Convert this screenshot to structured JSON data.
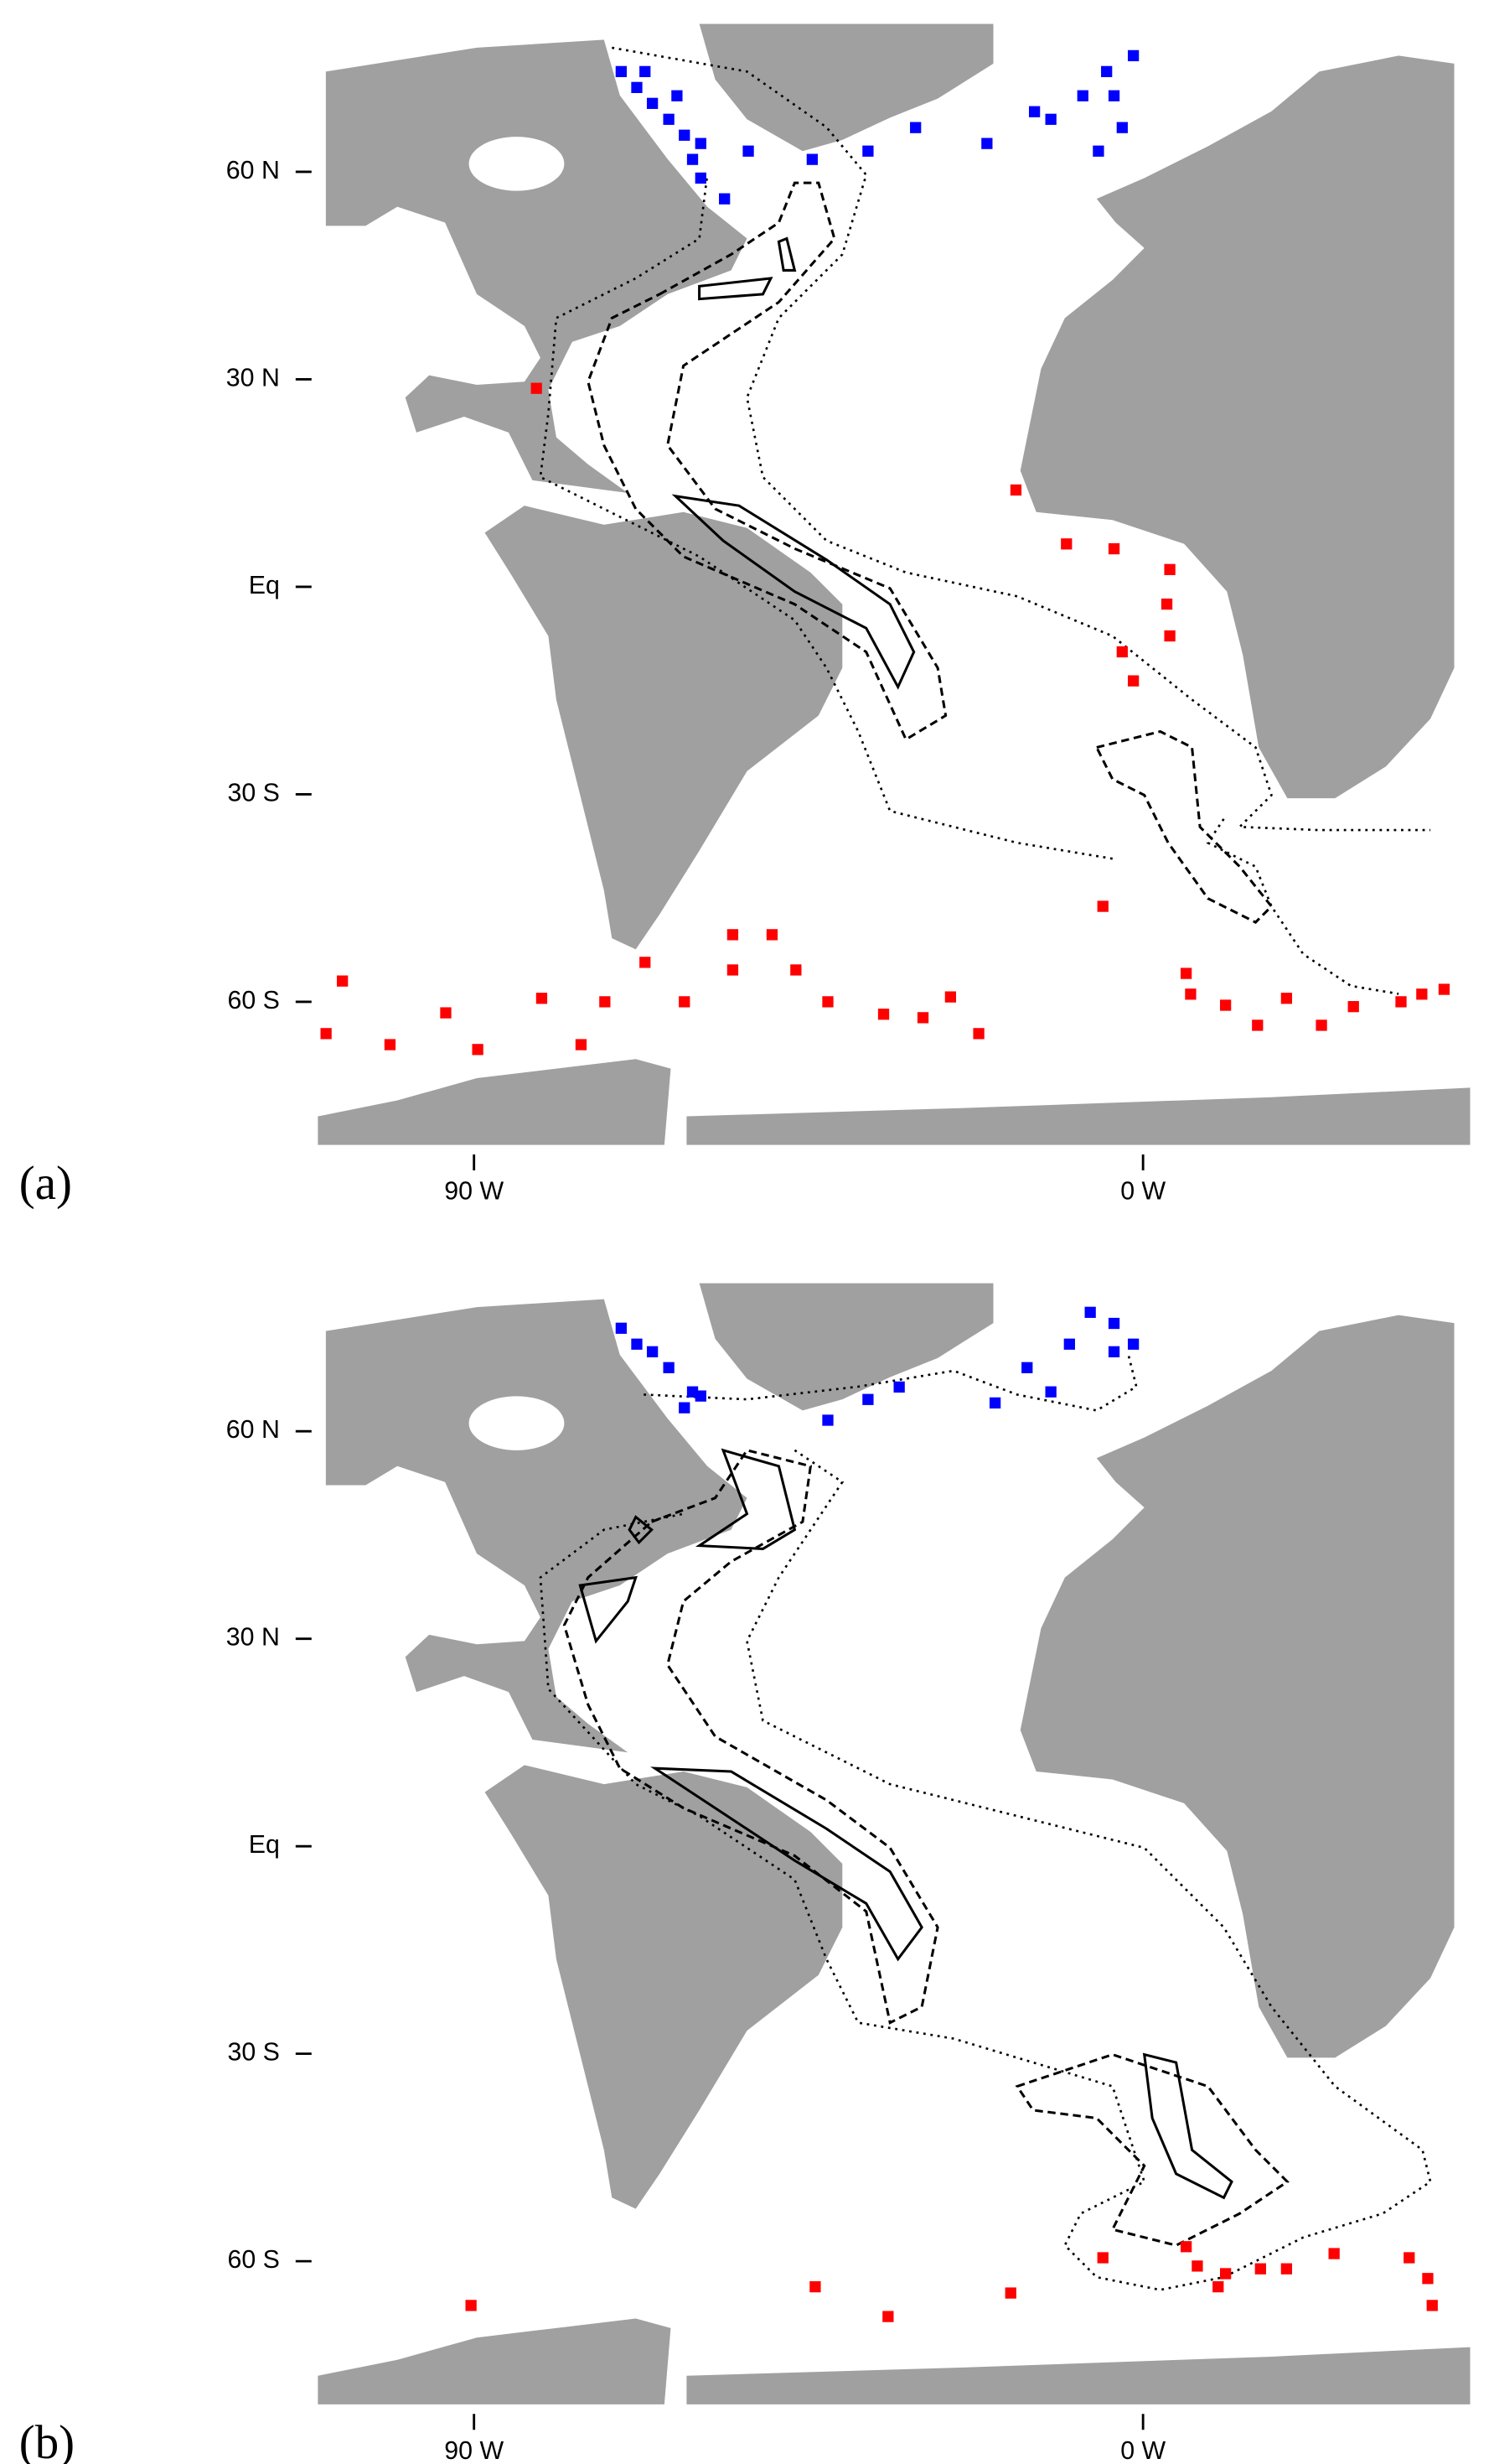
{
  "panels": [
    {
      "label": "(a)",
      "xlim": [
        -111,
        44
      ],
      "ylim": [
        -80.7,
        81.4
      ],
      "xticks": [
        {
          "value": -90,
          "label": "90 W"
        },
        {
          "value": 0,
          "label": "0 W"
        }
      ],
      "yticks": [
        {
          "value": 60,
          "label": "60 N"
        },
        {
          "value": 30,
          "label": "30 N"
        },
        {
          "value": 0,
          "label": "Eq"
        },
        {
          "value": -30,
          "label": "30 S"
        },
        {
          "value": -60,
          "label": "60 S"
        }
      ],
      "series": [
        {
          "color": "#0000ff",
          "lon": [
            -70.2,
            -68.1,
            -66.0,
            -63.8,
            -61.7,
            -60.6,
            -59.5,
            -56.3,
            -67.0,
            -62.7,
            -59.5,
            -53.1,
            -44.5,
            -37.0,
            -30.6,
            -21.0,
            -12.4,
            -8.1,
            -3.9,
            -1.3,
            -4.9,
            -2.8,
            -6.0,
            -14.6
          ],
          "lat": [
            74.5,
            72.2,
            69.9,
            67.6,
            65.3,
            61.8,
            59.1,
            56.1,
            74.5,
            71.0,
            64.1,
            63.0,
            61.8,
            63.0,
            66.4,
            64.1,
            67.6,
            71.0,
            71.0,
            76.8,
            74.5,
            66.4,
            63.0,
            68.7
          ]
        },
        {
          "color": "#ff0000",
          "lon": [
            -81.6,
            -17.1,
            -10.3,
            -3.9,
            3.6,
            3.2,
            3.6,
            -2.8,
            -1.3,
            -5.4,
            -107.7,
            -101.3,
            -109.9,
            -93.8,
            -89.5,
            -80.9,
            -75.6,
            -72.4,
            -67.0,
            -61.7,
            -55.2,
            -49.9,
            -55.2,
            -46.7,
            -42.4,
            -34.9,
            -29.6,
            -25.9,
            -22.1,
            5.8,
            6.4,
            11.1,
            19.3,
            15.4,
            24.0,
            28.3,
            34.7,
            37.5,
            40.5
          ],
          "lat": [
            28.7,
            14.0,
            6.2,
            5.5,
            2.5,
            -2.5,
            -7.1,
            -9.4,
            -13.6,
            -46.2,
            -57.0,
            -66.2,
            -64.6,
            -61.6,
            -66.9,
            -59.5,
            -66.2,
            -60.0,
            -54.3,
            -60.0,
            -55.4,
            -50.3,
            -50.3,
            -55.4,
            -60.0,
            -61.8,
            -62.3,
            -59.3,
            -64.6,
            -55.9,
            -58.9,
            -60.5,
            -59.5,
            -63.4,
            -63.4,
            -60.7,
            -60.0,
            -58.9,
            -58.2
          ]
        }
      ]
    },
    {
      "label": "(b)",
      "xlim": [
        -111,
        44
      ],
      "ylim": [
        -80.7,
        81.4
      ],
      "xticks": [
        {
          "value": -90,
          "label": "90 W"
        },
        {
          "value": 0,
          "label": "0 W"
        }
      ],
      "yticks": [
        {
          "value": 60,
          "label": "60 N"
        },
        {
          "value": 30,
          "label": "30 N"
        },
        {
          "value": 0,
          "label": "Eq"
        },
        {
          "value": -30,
          "label": "30 S"
        },
        {
          "value": -60,
          "label": "60 S"
        }
      ],
      "series": [
        {
          "color": "#0000ff",
          "lon": [
            -70.2,
            -68.1,
            -66.0,
            -63.8,
            -60.6,
            -61.7,
            -59.5,
            -42.4,
            -37.0,
            -32.8,
            -19.9,
            -15.6,
            -12.4,
            -9.9,
            -7.1,
            -3.9,
            -1.3,
            -3.9
          ],
          "lat": [
            74.9,
            72.6,
            71.5,
            69.2,
            65.7,
            63.4,
            65.1,
            61.6,
            64.6,
            66.4,
            64.1,
            69.2,
            65.7,
            72.6,
            77.2,
            71.5,
            72.6,
            75.6
          ]
        },
        {
          "color": "#ff0000",
          "lon": [
            -90.4,
            -44.1,
            -34.3,
            -17.8,
            -5.4,
            5.8,
            7.3,
            11.1,
            10.1,
            15.8,
            19.3,
            25.7,
            35.8,
            38.3,
            38.9
          ],
          "lat": [
            -66.4,
            -63.7,
            -68.0,
            -64.6,
            -59.5,
            -57.9,
            -60.7,
            -61.8,
            -63.7,
            -61.1,
            -61.1,
            -58.9,
            -59.5,
            -62.5,
            -66.4
          ]
        }
      ]
    }
  ]
}
